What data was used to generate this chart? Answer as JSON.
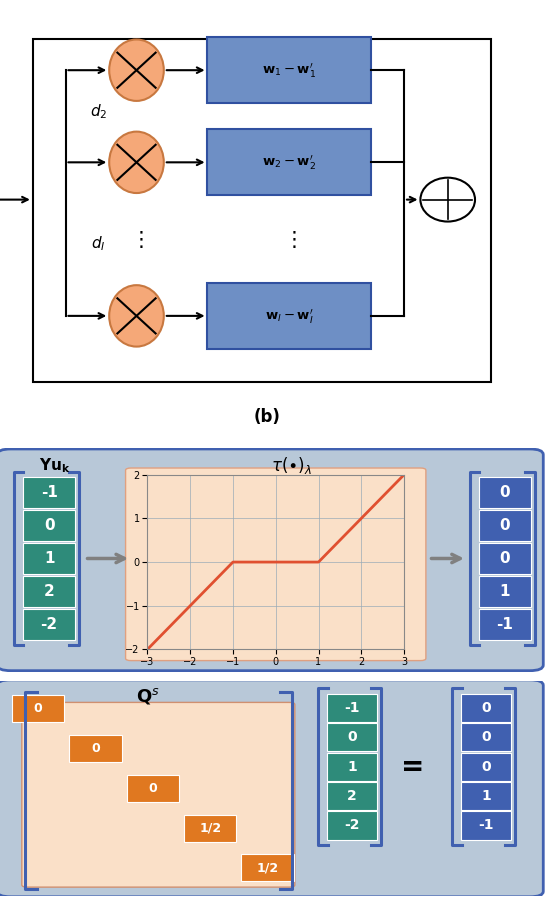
{
  "fig_width": 5.46,
  "fig_height": 9.14,
  "dpi": 100,
  "ellipse_color": "#F5A878",
  "ellipse_edge": "#C87840",
  "box_color": "#6E8FC5",
  "box_edge": "#3050A0",
  "teal_color": "#2E8B7A",
  "orange_color": "#E07820",
  "blue_vec_color": "#4060B0",
  "panel_bg": "#B8C8D8",
  "plot_bg": "#FAE0C8",
  "input_vector": [
    -1,
    0,
    1,
    2,
    -2
  ],
  "output_vector": [
    0,
    0,
    0,
    1,
    -1
  ],
  "matrix_diag": [
    "0",
    "0",
    "0",
    "1/2",
    "1/2"
  ],
  "vec2_vals": [
    -1,
    0,
    1,
    2,
    -2
  ],
  "vec3_vals": [
    0,
    0,
    0,
    1,
    -1
  ]
}
